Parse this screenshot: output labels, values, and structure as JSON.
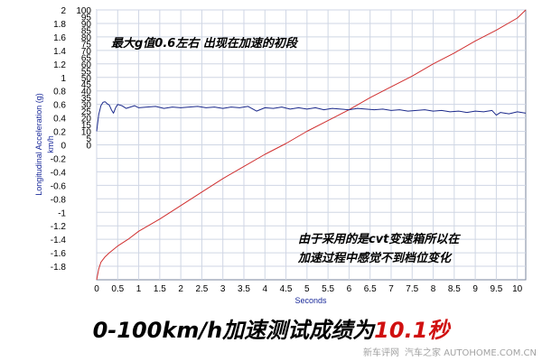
{
  "headline": {
    "prefix": "0-100km/h加速测试成绩为",
    "highlight": "10.1秒"
  },
  "notes": {
    "top": "最大g值0.6左右 出现在加速的初段",
    "bottom_line1": "由于采用的是cvt变速箱所以在",
    "bottom_line2": "加速过程中感觉不到档位变化"
  },
  "watermark": {
    "left": "新车评网",
    "right": "汽车之家 AUTOHOME.COM.CN"
  },
  "colors": {
    "speed_series": "#d03030",
    "accel_series": "#1c2a8c",
    "grid": "#cfd6e4",
    "highlight": "#d01010"
  },
  "chart_data": {
    "type": "line",
    "xlabel": "Seconds",
    "ylabel_left": "Longitudinal Acceleration (g)",
    "ylabel_right": "km/h",
    "xlim": [
      0,
      10.2
    ],
    "x_ticks": [
      "0",
      "0.5",
      "1",
      "1.5",
      "2",
      "2.5",
      "3",
      "3.5",
      "4",
      "4.5",
      "5",
      "5.5",
      "6",
      "6.5",
      "7",
      "7.5",
      "8",
      "8.5",
      "9",
      "9.5",
      "10"
    ],
    "y_left_lim": [
      -2,
      2
    ],
    "y_left_ticks": [
      "2",
      "1.8",
      "1.6",
      "1.4",
      "1.2",
      "1",
      "0.8",
      "0.6",
      "0.4",
      "0.2",
      "0",
      "-0.2",
      "-0.4",
      "-0.6",
      "-0.8",
      "-1",
      "-1.2",
      "-1.4",
      "-1.6",
      "-1.8"
    ],
    "y_right_lim": [
      -100,
      100
    ],
    "y_right_ticks": [
      "100",
      "95",
      "90",
      "85",
      "80",
      "75",
      "70",
      "65",
      "60",
      "55",
      "50",
      "45",
      "40",
      "35",
      "30",
      "25",
      "20",
      "15",
      "10",
      "5",
      "0"
    ],
    "grid": true,
    "series": [
      {
        "name": "km/h",
        "axis": "right",
        "x": [
          0,
          0.05,
          0.1,
          0.2,
          0.3,
          0.5,
          0.75,
          1,
          1.5,
          2,
          2.5,
          3,
          3.5,
          4,
          4.5,
          5,
          5.5,
          6,
          6.5,
          7,
          7.5,
          8,
          8.5,
          9,
          9.5,
          10,
          10.2
        ],
        "y": [
          -100,
          -92,
          -87,
          -83,
          -80,
          -75,
          -70,
          -64,
          -55,
          -45,
          -35,
          -25,
          -16,
          -7,
          1,
          10,
          18,
          26,
          35,
          43,
          51,
          60,
          68,
          77,
          85,
          94,
          100
        ]
      },
      {
        "name": "Longitudinal Acceleration (g)",
        "axis": "left",
        "x": [
          0,
          0.05,
          0.1,
          0.15,
          0.2,
          0.25,
          0.3,
          0.35,
          0.4,
          0.45,
          0.5,
          0.6,
          0.7,
          0.8,
          0.9,
          1,
          1.2,
          1.4,
          1.6,
          1.8,
          2,
          2.2,
          2.4,
          2.6,
          2.8,
          3,
          3.2,
          3.4,
          3.6,
          3.8,
          4,
          4.2,
          4.4,
          4.6,
          4.8,
          5,
          5.2,
          5.4,
          5.6,
          5.8,
          6,
          6.2,
          6.4,
          6.6,
          6.8,
          7,
          7.2,
          7.4,
          7.6,
          7.8,
          8,
          8.2,
          8.4,
          8.6,
          8.8,
          9,
          9.2,
          9.4,
          9.5,
          9.6,
          9.8,
          10,
          10.2
        ],
        "y": [
          0.2,
          0.45,
          0.58,
          0.63,
          0.64,
          0.61,
          0.59,
          0.52,
          0.47,
          0.55,
          0.6,
          0.58,
          0.54,
          0.56,
          0.58,
          0.55,
          0.56,
          0.57,
          0.54,
          0.56,
          0.55,
          0.56,
          0.57,
          0.55,
          0.56,
          0.54,
          0.56,
          0.55,
          0.57,
          0.5,
          0.55,
          0.54,
          0.56,
          0.53,
          0.55,
          0.53,
          0.55,
          0.52,
          0.54,
          0.53,
          0.52,
          0.54,
          0.53,
          0.52,
          0.53,
          0.51,
          0.52,
          0.5,
          0.51,
          0.52,
          0.5,
          0.51,
          0.49,
          0.5,
          0.48,
          0.5,
          0.49,
          0.51,
          0.44,
          0.48,
          0.46,
          0.49,
          0.47
        ]
      }
    ]
  }
}
